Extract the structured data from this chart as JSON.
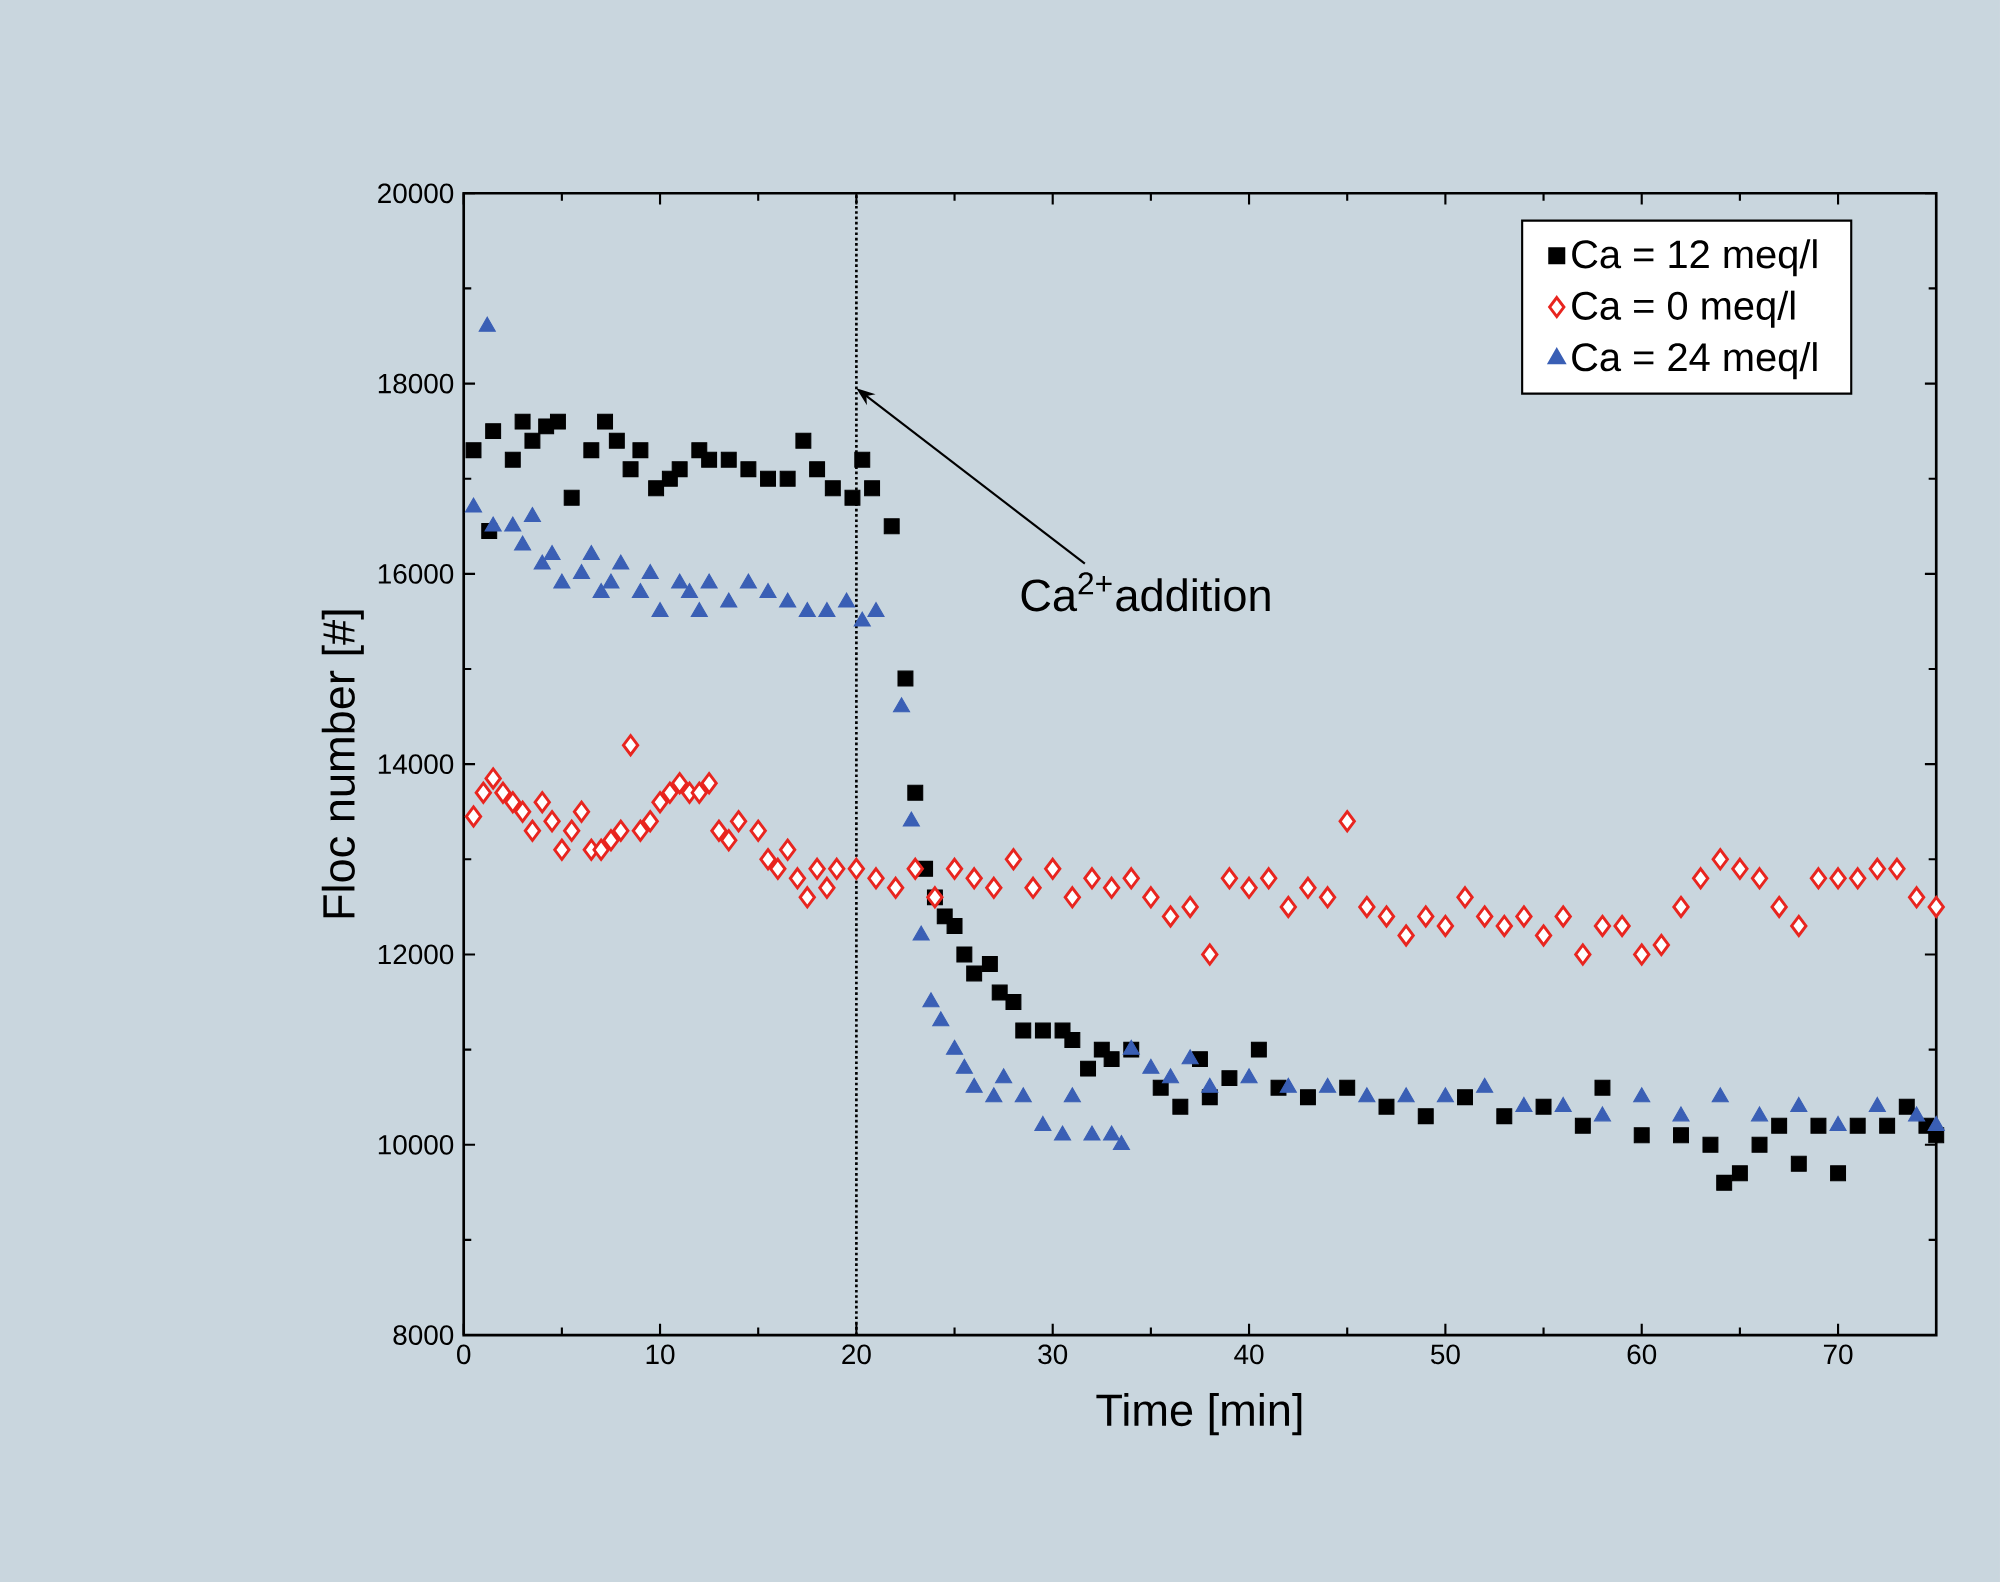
{
  "chart_data": {
    "type": "scatter",
    "xlabel": "Time [min]",
    "ylabel": "Floc number [#]",
    "xlim": [
      0,
      75
    ],
    "xticks": [
      0,
      10,
      20,
      30,
      40,
      50,
      60,
      70
    ],
    "ylim": [
      8000,
      20000
    ],
    "yticks": [
      8000,
      10000,
      12000,
      14000,
      16000,
      18000,
      20000
    ],
    "grid": false,
    "legend": "top right",
    "ref_lines": [
      {
        "axis": "x",
        "value": 20,
        "color": "#000000",
        "line_style": "dotted"
      }
    ],
    "annotations": [
      {
        "text": "Ca$^{2+}$addition",
        "x": 20,
        "y": 17950
      }
    ],
    "series": [
      {
        "name": "Ca = 12 meq/l",
        "color": "#000000",
        "marker": "square",
        "x": [
          0.5,
          1.3,
          1.5,
          2.5,
          3,
          3.5,
          4.2,
          4.8,
          5.5,
          6.5,
          7.2,
          7.8,
          8.5,
          9,
          9.8,
          10.5,
          11,
          12,
          12.5,
          13.5,
          14.5,
          15.5,
          16.5,
          17.3,
          18,
          18.8,
          19.8,
          20.3,
          20.8,
          21.8,
          22.5,
          23,
          23.5,
          24,
          24.5,
          25,
          25.5,
          26,
          26.8,
          27.3,
          28,
          28.5,
          29.5,
          30.5,
          31,
          31.8,
          32.5,
          33,
          34,
          35.5,
          36.5,
          37.5,
          38,
          39,
          40.5,
          41.5,
          43,
          45,
          47,
          49,
          51,
          53,
          55,
          57,
          58,
          60,
          62,
          63.5,
          64.2,
          65,
          66,
          67,
          68,
          69,
          70,
          71,
          72.5,
          73.5,
          74.5,
          75
        ],
        "values": [
          17300,
          16450,
          17500,
          17200,
          17600,
          17400,
          17550,
          17600,
          16800,
          17300,
          17600,
          17400,
          17100,
          17300,
          16900,
          17000,
          17100,
          17300,
          17200,
          17200,
          17100,
          17000,
          17000,
          17400,
          17100,
          16900,
          16800,
          17200,
          16900,
          16500,
          14900,
          13700,
          12900,
          12600,
          12400,
          12300,
          12000,
          11800,
          11900,
          11600,
          11500,
          11200,
          11200,
          11200,
          11100,
          10800,
          11000,
          10900,
          11000,
          10600,
          10400,
          10900,
          10500,
          10700,
          11000,
          10600,
          10500,
          10600,
          10400,
          10300,
          10500,
          10300,
          10400,
          10200,
          10600,
          10100,
          10100,
          10000,
          9600,
          9700,
          10000,
          10200,
          9800,
          10200,
          9700,
          10200,
          10200,
          10400,
          10200,
          10100
        ]
      },
      {
        "name": "Ca = 0 meq/l",
        "color": "#e8251f",
        "marker": "diamond",
        "x": [
          0.5,
          1,
          1.5,
          2,
          2.5,
          3,
          3.5,
          4,
          4.5,
          5,
          5.5,
          6,
          6.5,
          7,
          7.5,
          8,
          8.5,
          9,
          9.5,
          10,
          10.5,
          11,
          11.5,
          12,
          12.5,
          13,
          13.5,
          14,
          15,
          15.5,
          16,
          16.5,
          17,
          17.5,
          18,
          18.5,
          19,
          20,
          21,
          22,
          23,
          24,
          25,
          26,
          27,
          28,
          29,
          30,
          31,
          32,
          33,
          34,
          35,
          36,
          37,
          38,
          39,
          40,
          41,
          42,
          43,
          44,
          45,
          46,
          47,
          48,
          49,
          50,
          51,
          52,
          53,
          54,
          55,
          56,
          57,
          58,
          59,
          60,
          61,
          62,
          63,
          64,
          65,
          66,
          67,
          68,
          69,
          70,
          71,
          72,
          73,
          74,
          75
        ],
        "values": [
          13450,
          13700,
          13850,
          13700,
          13600,
          13500,
          13300,
          13600,
          13400,
          13100,
          13300,
          13500,
          13100,
          13100,
          13200,
          13300,
          14200,
          13300,
          13400,
          13600,
          13700,
          13800,
          13700,
          13700,
          13800,
          13300,
          13200,
          13400,
          13300,
          13000,
          12900,
          13100,
          12800,
          12600,
          12900,
          12700,
          12900,
          12900,
          12800,
          12700,
          12900,
          12600,
          12900,
          12800,
          12700,
          13000,
          12700,
          12900,
          12600,
          12800,
          12700,
          12800,
          12600,
          12400,
          12500,
          12000,
          12800,
          12700,
          12800,
          12500,
          12700,
          12600,
          13400,
          12500,
          12400,
          12200,
          12400,
          12300,
          12600,
          12400,
          12300,
          12400,
          12200,
          12400,
          12000,
          12300,
          12300,
          12000,
          12100,
          12500,
          12800,
          13000,
          12900,
          12800,
          12500,
          12300,
          12800,
          12800,
          12800,
          12900,
          12900,
          12600,
          12500
        ]
      },
      {
        "name": "Ca = 24 meq/l",
        "color": "#3a5fb5",
        "marker": "triangle",
        "x": [
          0.5,
          1.2,
          1.5,
          2.5,
          3,
          3.5,
          4,
          4.5,
          5,
          6,
          6.5,
          7,
          7.5,
          8,
          9,
          9.5,
          10,
          11,
          11.5,
          12,
          12.5,
          13.5,
          14.5,
          15.5,
          16.5,
          17.5,
          18.5,
          19.5,
          20.3,
          21,
          22.3,
          22.8,
          23.3,
          23.8,
          24.3,
          25,
          25.5,
          26,
          27,
          27.5,
          28.5,
          29.5,
          30.5,
          31,
          32,
          33,
          33.5,
          34,
          35,
          36,
          37,
          38,
          40,
          42,
          44,
          46,
          48,
          50,
          52,
          54,
          56,
          58,
          60,
          62,
          64,
          66,
          68,
          70,
          72,
          74,
          75
        ],
        "values": [
          16700,
          18600,
          16500,
          16500,
          16300,
          16600,
          16100,
          16200,
          15900,
          16000,
          16200,
          15800,
          15900,
          16100,
          15800,
          16000,
          15600,
          15900,
          15800,
          15600,
          15900,
          15700,
          15900,
          15800,
          15700,
          15600,
          15600,
          15700,
          15500,
          15600,
          14600,
          13400,
          12200,
          11500,
          11300,
          11000,
          10800,
          10600,
          10500,
          10700,
          10500,
          10200,
          10100,
          10500,
          10100,
          10100,
          10000,
          11000,
          10800,
          10700,
          10900,
          10600,
          10700,
          10600,
          10600,
          10500,
          10500,
          10500,
          10600,
          10400,
          10400,
          10300,
          10500,
          10300,
          10500,
          10300,
          10400,
          10200,
          10400,
          10300,
          10200
        ]
      }
    ]
  }
}
